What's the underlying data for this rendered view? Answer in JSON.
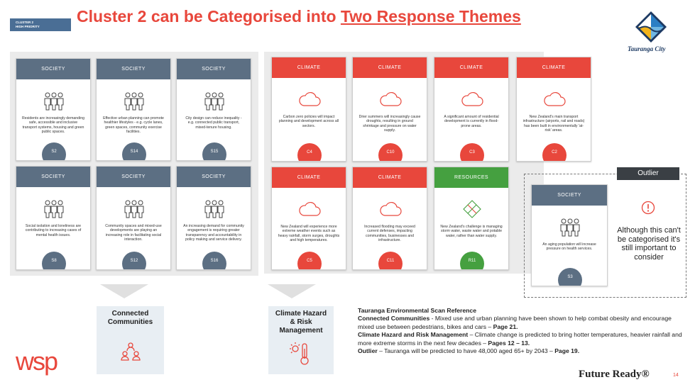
{
  "badge": {
    "line1": "CLUSTER 2",
    "line2": "HIGH PRIORITY"
  },
  "title": {
    "prefix": "Cluster 2 can be Categorised into ",
    "underlined": "Two Response Themes"
  },
  "logo": {
    "text": "Tauranga City"
  },
  "colors": {
    "society": "#5c6f83",
    "climate": "#e8473c",
    "resources": "#45a040",
    "accent": "#e8473c"
  },
  "cards": [
    {
      "category": "SOCIETY",
      "icon": "people-icon",
      "text": "Residents are increasingly demanding safe, accessible and inclusive transport systems, housing and green public spaces.",
      "code": "S2"
    },
    {
      "category": "SOCIETY",
      "icon": "people-icon",
      "text": "Effective urban planning can promote healthier lifestyles - e.g. cycle lanes, green spaces, community exercise facilities.",
      "code": "S14"
    },
    {
      "category": "SOCIETY",
      "icon": "people-icon",
      "text": "City design can reduce inequality - e.g. connected public transport, mixed-tenure housing.",
      "code": "S15"
    },
    {
      "category": "SOCIETY",
      "icon": "people-icon",
      "text": "Social isolation and loneliness are contributing to increasing cases of mental health issues.",
      "code": "S8"
    },
    {
      "category": "SOCIETY",
      "icon": "people-icon",
      "text": "Community spaces and mixed-use developments are playing an increasing role in facilitating social interaction.",
      "code": "S12"
    },
    {
      "category": "SOCIETY",
      "icon": "people-icon",
      "text": "An increasing demand for community engagement is requiring greater transparency and accountability in policy making and service delivery.",
      "code": "S16"
    },
    {
      "category": "CLIMATE",
      "icon": "cloud-icon",
      "text": "Carbon zero policies will impact planning and development across all sectors.",
      "code": "C4"
    },
    {
      "category": "CLIMATE",
      "icon": "cloud-icon",
      "text": "Drier summers will increasingly cause droughts, resulting in ground shrinkage and pressure on water supply.",
      "code": "C10"
    },
    {
      "category": "CLIMATE",
      "icon": "cloud-icon",
      "text": "A significant amount of residential development is currently in flood-prone areas.",
      "code": "C3"
    },
    {
      "category": "CLIMATE",
      "icon": "cloud-icon",
      "text": "New Zealand's main transport infrastructure (airports, rail and roads) has been built in environmentally 'at-risk' areas.",
      "code": "C2"
    },
    {
      "category": "CLIMATE",
      "icon": "cloud-icon",
      "text": "New Zealand will experience more extreme weather events such as heavy rainfall, storm surges, droughts and high temperatures.",
      "code": "C5"
    },
    {
      "category": "CLIMATE",
      "icon": "cloud-icon",
      "text": "Increased flooding may exceed current defenses, impacting communities, businesses and infrastructure.",
      "code": "C11"
    },
    {
      "category": "RESOURCES",
      "icon": "leaf-icon",
      "text": "New Zealand's challenge is managing storm water, waste water and potable water, rather than water supply.",
      "code": "R11"
    },
    {
      "category": "SOCIETY",
      "icon": "people-icon",
      "text": "An aging population will increase pressure on health services.",
      "code": "S3"
    }
  ],
  "summaries": {
    "connected": "Connected Communities",
    "climate": "Climate Hazard & Risk Management"
  },
  "outlier": {
    "tab": "Outlier",
    "text": "Although this can't be categorised it's still important to consider"
  },
  "reference": {
    "heading": "Tauranga Environmental Scan Reference",
    "items": [
      {
        "label": "Connected Communities",
        "text": " - Mixed use and urban planning have been shown to help combat obesity and encourage mixed use between pedestrians, bikes and cars – ",
        "page": "Page 21."
      },
      {
        "label": "Climate Hazard and Risk Management",
        "text": " – Climate change is predicted to bring hotter temperatures, heavier rainfall and more extreme storms in the next few decades – ",
        "page": "Pages 12 – 13."
      },
      {
        "label": "Outlier",
        "text": " – Tauranga will be predicted to have 48,000 aged 65+ by 2043 – ",
        "page": "Page 19."
      }
    ]
  },
  "footer": {
    "brand": "wsp",
    "tagline": "Future Ready®",
    "page": "14"
  }
}
